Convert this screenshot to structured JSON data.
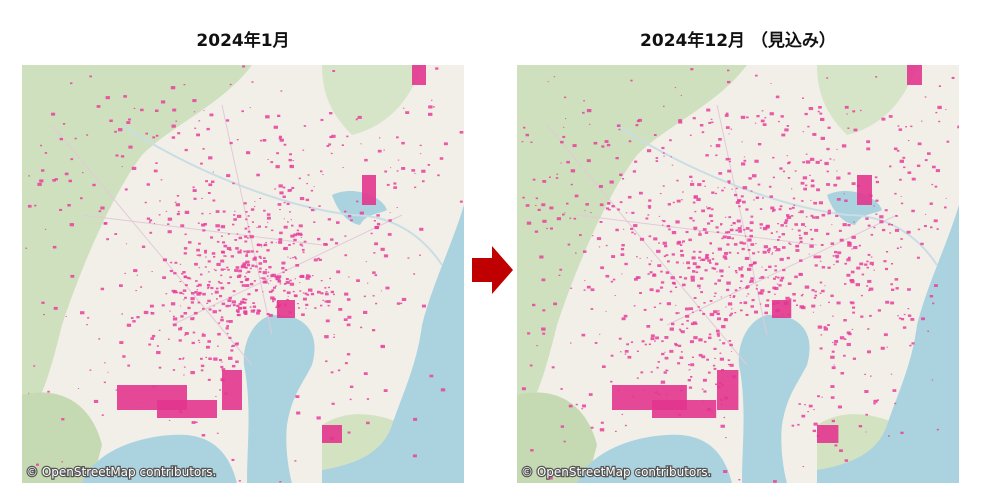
{
  "maps": [
    {
      "title": "2024年1月",
      "attribution": "© OpenStreetMap contributors."
    },
    {
      "title": "2024年12月 （見込み）",
      "attribution": "© OpenStreetMap contributors."
    }
  ]
}
